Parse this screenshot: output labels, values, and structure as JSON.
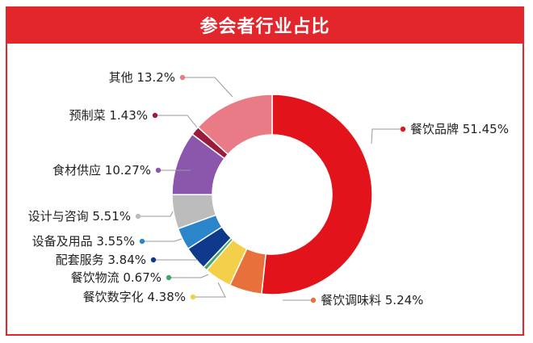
{
  "chart_data": {
    "type": "pie",
    "title": "参会者行业占比",
    "slices": [
      {
        "label": "餐饮品牌",
        "value": 51.45,
        "text": "餐饮品牌  51.45%",
        "color": "#e3131b"
      },
      {
        "label": "餐饮调味料",
        "value": 5.24,
        "text": "餐饮调味料  5.24%",
        "color": "#e8703a"
      },
      {
        "label": "餐饮数字化",
        "value": 4.38,
        "text": "餐饮数字化  4.38%",
        "color": "#f4cf4a"
      },
      {
        "label": "餐饮物流",
        "value": 0.67,
        "text": "餐饮物流  0.67%",
        "color": "#3fa86a"
      },
      {
        "label": "配套服务",
        "value": 3.84,
        "text": "配套服务  3.84%",
        "color": "#0f3a8c"
      },
      {
        "label": "设备及用品",
        "value": 3.55,
        "text": "设备及用品  3.55%",
        "color": "#2b86c9"
      },
      {
        "label": "设计与咨询",
        "value": 5.51,
        "text": "设计与咨询  5.51%",
        "color": "#bcbcbc"
      },
      {
        "label": "食材供应",
        "value": 10.27,
        "text": "食材供应  10.27%",
        "color": "#8a57ad"
      },
      {
        "label": "预制菜",
        "value": 1.43,
        "text": "预制菜  1.43%",
        "color": "#9a1b3c"
      },
      {
        "label": "其他",
        "value": 13.2,
        "text": "其他  13.2%",
        "color": "#e87b85"
      }
    ]
  }
}
